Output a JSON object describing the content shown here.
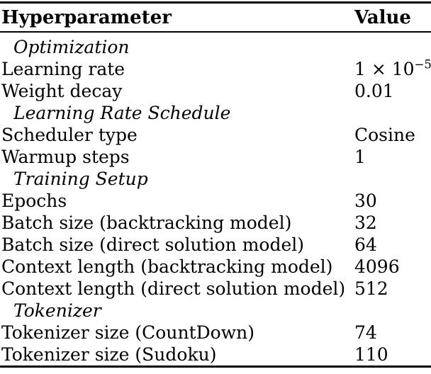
{
  "table": {
    "columns": [
      "Hyperparameter",
      "Value"
    ],
    "rows": [
      {
        "type": "section",
        "label": "Optimization"
      },
      {
        "type": "data",
        "label": "Learning rate",
        "value": "1 × 10",
        "value_sup": "−5"
      },
      {
        "type": "data",
        "label": "Weight decay",
        "value": "0.01"
      },
      {
        "type": "section",
        "label": "Learning Rate Schedule"
      },
      {
        "type": "data",
        "label": "Scheduler type",
        "value": "Cosine"
      },
      {
        "type": "data",
        "label": "Warmup steps",
        "value": "1"
      },
      {
        "type": "section",
        "label": "Training Setup"
      },
      {
        "type": "data",
        "label": "Epochs",
        "value": "30"
      },
      {
        "type": "data",
        "label": "Batch size (backtracking model)",
        "value": "32"
      },
      {
        "type": "data",
        "label": "Batch size (direct solution model)",
        "value": "64"
      },
      {
        "type": "data",
        "label": "Context length (backtracking model)",
        "value": "4096"
      },
      {
        "type": "data",
        "label": "Context length (direct solution model)",
        "value": "512"
      },
      {
        "type": "section",
        "label": "Tokenizer"
      },
      {
        "type": "data",
        "label": "Tokenizer size (CountDown)",
        "value": "74"
      },
      {
        "type": "data",
        "label": "Tokenizer size (Sudoku)",
        "value": "110"
      }
    ],
    "text_color": "#000000",
    "rule_color": "#000000",
    "background_color": "#ffffff"
  }
}
